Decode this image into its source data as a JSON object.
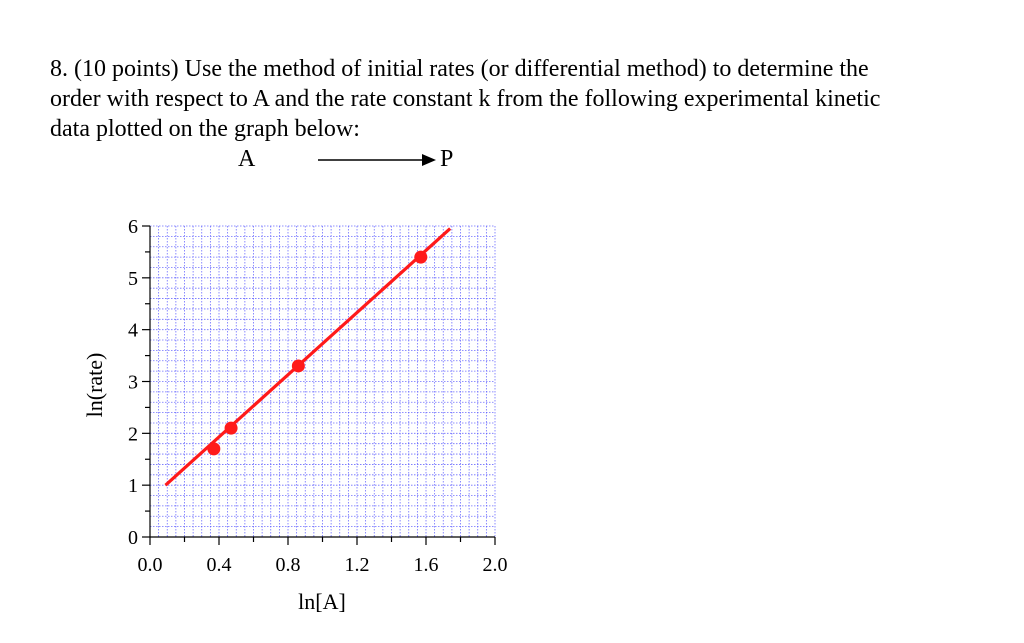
{
  "question": {
    "lines": [
      "8. (10 points) Use the method of initial rates (or differential method) to determine the",
      "order with respect to A and the rate constant k from the following experimental kinetic",
      "data plotted on the graph below:"
    ]
  },
  "reaction": {
    "reactant": "A",
    "product": "P"
  },
  "chart_data": {
    "type": "scatter",
    "title": "",
    "xlabel": "ln[A]",
    "ylabel": "ln(rate)",
    "xlim": [
      0,
      2.0
    ],
    "ylim": [
      0,
      6
    ],
    "x_ticks": [
      "0.0",
      "0.4",
      "0.8",
      "1.2",
      "1.6",
      "2.0"
    ],
    "x_tick_values": [
      0,
      0.4,
      0.8,
      1.2,
      1.6,
      2.0
    ],
    "y_ticks": [
      "0",
      "1",
      "2",
      "3",
      "4",
      "5",
      "6"
    ],
    "y_tick_values": [
      0,
      1,
      2,
      3,
      4,
      5,
      6
    ],
    "grid": true,
    "points": [
      {
        "x": 0.37,
        "y": 1.7
      },
      {
        "x": 0.47,
        "y": 2.1
      },
      {
        "x": 0.86,
        "y": 3.3
      },
      {
        "x": 1.57,
        "y": 5.4
      }
    ],
    "fit_line": {
      "x": [
        0.09,
        1.74
      ],
      "y": [
        1.0,
        5.95
      ]
    },
    "colors": {
      "data": "#ff1a1a",
      "grid": "#5555ff",
      "axes": "#000000"
    }
  }
}
